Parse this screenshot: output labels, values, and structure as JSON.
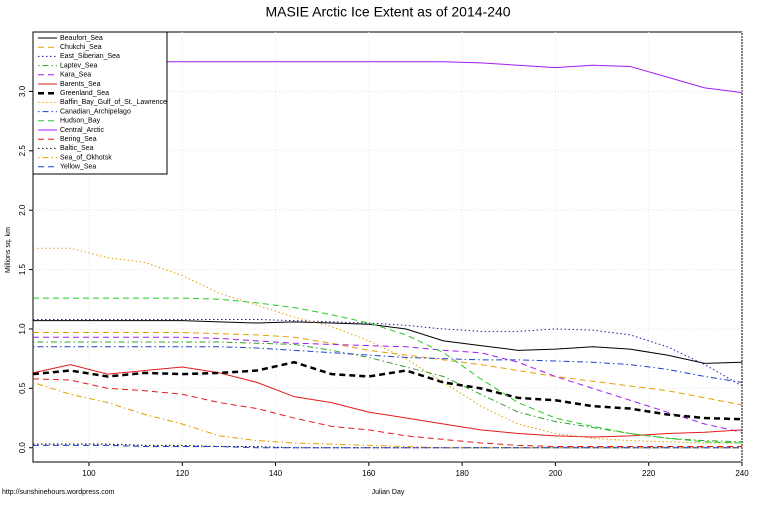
{
  "chart_data": {
    "type": "line",
    "title": "MASIE Arctic Ice Extent as of 2014-240",
    "x_label": "Julian Day",
    "y_label": "Millions sq. km",
    "source": "http://sunshinehours.wordpress.com",
    "xlim": [
      88,
      240
    ],
    "ylim": [
      -0.12,
      3.5
    ],
    "xticks": [
      100,
      120,
      140,
      160,
      180,
      200,
      220,
      240
    ],
    "yticks": [
      {
        "value": 0,
        "label": "0.0"
      },
      0.5,
      {
        "value": 1,
        "label": "1.0"
      },
      1.5,
      {
        "value": 2,
        "label": "2.0"
      },
      2.5,
      {
        "value": 3,
        "label": "3.0"
      }
    ],
    "grid": true,
    "legend": "top-left",
    "x": [
      88,
      96,
      104,
      112,
      120,
      128,
      136,
      144,
      152,
      160,
      168,
      176,
      184,
      192,
      200,
      208,
      216,
      224,
      232,
      240
    ],
    "series": [
      {
        "name": "Beaufort_Sea",
        "color": "#000000",
        "dash": "solid",
        "values": [
          1.07,
          1.07,
          1.07,
          1.07,
          1.07,
          1.06,
          1.05,
          1.06,
          1.05,
          1.04,
          1.0,
          0.9,
          0.86,
          0.82,
          0.83,
          0.85,
          0.83,
          0.78,
          0.71,
          0.72
        ]
      },
      {
        "name": "Chukchi_Sea",
        "color": "#e69f00",
        "dash": "dashed",
        "values": [
          0.97,
          0.97,
          0.97,
          0.97,
          0.97,
          0.96,
          0.95,
          0.93,
          0.88,
          0.82,
          0.78,
          0.74,
          0.7,
          0.65,
          0.6,
          0.56,
          0.52,
          0.48,
          0.42,
          0.36
        ]
      },
      {
        "name": "East_Siberian_Sea",
        "color": "#1a1aa8",
        "dash": "dotted",
        "values": [
          1.08,
          1.08,
          1.08,
          1.08,
          1.08,
          1.08,
          1.08,
          1.07,
          1.06,
          1.05,
          1.03,
          1.0,
          0.98,
          0.98,
          1.0,
          0.99,
          0.95,
          0.85,
          0.7,
          0.52
        ]
      },
      {
        "name": "Laptev_Sea",
        "color": "#33a02c",
        "dash": "dotdash",
        "values": [
          0.89,
          0.89,
          0.89,
          0.89,
          0.89,
          0.89,
          0.88,
          0.87,
          0.82,
          0.76,
          0.68,
          0.6,
          0.45,
          0.3,
          0.22,
          0.17,
          0.12,
          0.08,
          0.06,
          0.05
        ]
      },
      {
        "name": "Kara_Sea",
        "color": "#a020f0",
        "dash": "dashed",
        "values": [
          0.93,
          0.93,
          0.93,
          0.93,
          0.93,
          0.92,
          0.9,
          0.88,
          0.87,
          0.86,
          0.85,
          0.82,
          0.8,
          0.72,
          0.6,
          0.5,
          0.4,
          0.3,
          0.2,
          0.13
        ]
      },
      {
        "name": "Barents_Sea",
        "color": "#e31a1c",
        "dash": "solid",
        "values": [
          0.63,
          0.7,
          0.62,
          0.65,
          0.68,
          0.63,
          0.55,
          0.43,
          0.38,
          0.3,
          0.25,
          0.2,
          0.15,
          0.12,
          0.1,
          0.09,
          0.1,
          0.12,
          0.13,
          0.15
        ]
      },
      {
        "name": "Greenland_Sea",
        "color": "#000000",
        "dash": "dashed",
        "width": 2.5,
        "values": [
          0.62,
          0.65,
          0.6,
          0.63,
          0.62,
          0.63,
          0.65,
          0.72,
          0.62,
          0.6,
          0.65,
          0.55,
          0.5,
          0.42,
          0.4,
          0.35,
          0.33,
          0.28,
          0.25,
          0.24
        ]
      },
      {
        "name": "Baffin_Bay_Gulf_of_St._Lawrence",
        "color": "#e69f00",
        "dash": "dotted",
        "values": [
          1.68,
          1.68,
          1.6,
          1.56,
          1.45,
          1.3,
          1.2,
          1.1,
          1.02,
          0.9,
          0.75,
          0.55,
          0.35,
          0.2,
          0.12,
          0.08,
          0.06,
          0.05,
          0.04,
          0.04
        ]
      },
      {
        "name": "Canadian_Archipelago",
        "color": "#1f3fd0",
        "dash": "dotdash",
        "values": [
          0.85,
          0.85,
          0.85,
          0.85,
          0.85,
          0.85,
          0.84,
          0.82,
          0.8,
          0.78,
          0.76,
          0.75,
          0.74,
          0.74,
          0.73,
          0.72,
          0.7,
          0.66,
          0.6,
          0.55
        ]
      },
      {
        "name": "Hudson_Bay",
        "color": "#22cc22",
        "dash": "dashed",
        "values": [
          1.26,
          1.26,
          1.26,
          1.26,
          1.26,
          1.25,
          1.22,
          1.18,
          1.12,
          1.05,
          0.95,
          0.8,
          0.58,
          0.38,
          0.25,
          0.18,
          0.12,
          0.08,
          0.05,
          0.04
        ]
      },
      {
        "name": "Central_Arctic",
        "color": "#a020f0",
        "dash": "solid",
        "values": [
          3.24,
          3.25,
          3.25,
          3.25,
          3.25,
          3.25,
          3.25,
          3.25,
          3.25,
          3.25,
          3.25,
          3.25,
          3.24,
          3.22,
          3.2,
          3.22,
          3.21,
          3.12,
          3.03,
          2.99
        ]
      },
      {
        "name": "Bering_Sea",
        "color": "#e31a1c",
        "dash": "dashed",
        "values": [
          0.58,
          0.57,
          0.5,
          0.48,
          0.45,
          0.38,
          0.33,
          0.25,
          0.18,
          0.15,
          0.1,
          0.07,
          0.04,
          0.02,
          0.01,
          0.01,
          0.01,
          0.01,
          0.01,
          0.01
        ]
      },
      {
        "name": "Baltic_Sea",
        "color": "#000000",
        "dash": "dotted",
        "values": [
          0.03,
          0.03,
          0.03,
          0.02,
          0.02,
          0.01,
          0.01,
          0,
          0,
          0,
          0,
          0,
          0,
          0,
          0,
          0,
          0,
          0,
          0,
          0
        ]
      },
      {
        "name": "Sea_of_Okhotsk",
        "color": "#e69f00",
        "dash": "dotdash",
        "values": [
          0.55,
          0.45,
          0.38,
          0.28,
          0.2,
          0.1,
          0.06,
          0.04,
          0.03,
          0.02,
          0.01,
          0,
          0,
          0,
          0,
          0,
          0,
          0,
          0,
          0
        ]
      },
      {
        "name": "Yellow_Sea",
        "color": "#1f3fd0",
        "dash": "dashed",
        "values": [
          0.02,
          0.02,
          0.02,
          0.01,
          0.01,
          0.01,
          0,
          0,
          0,
          0,
          0,
          0,
          0,
          0,
          0,
          0,
          0,
          0,
          0,
          0
        ]
      }
    ]
  }
}
